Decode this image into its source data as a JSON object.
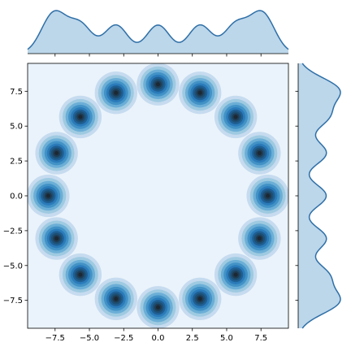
{
  "chart_data": {
    "type": "kde-jointplot",
    "title": "",
    "xlabel": "",
    "ylabel": "",
    "xlim": [
      -9.5,
      9.5
    ],
    "ylim": [
      -9.5,
      9.5
    ],
    "x_ticks": [
      -7.5,
      -5.0,
      -2.5,
      0.0,
      2.5,
      5.0,
      7.5
    ],
    "y_ticks": [
      -7.5,
      -5.0,
      -2.5,
      0.0,
      2.5,
      5.0,
      7.5
    ],
    "x_tick_labels": [
      "−7.5",
      "−5.0",
      "−2.5",
      "0.0",
      "2.5",
      "5.0",
      "7.5"
    ],
    "y_tick_labels": [
      "−7.5",
      "−5.0",
      "−2.5",
      "0.0",
      "2.5",
      "5.0",
      "7.5"
    ],
    "cluster_centers": [
      {
        "x": 8.0,
        "y": 0.0
      },
      {
        "x": 7.39,
        "y": 3.06
      },
      {
        "x": 5.66,
        "y": 5.66
      },
      {
        "x": 3.06,
        "y": 7.39
      },
      {
        "x": 0.0,
        "y": 8.0
      },
      {
        "x": -3.06,
        "y": 7.39
      },
      {
        "x": -5.66,
        "y": 5.66
      },
      {
        "x": -7.39,
        "y": 3.06
      },
      {
        "x": -8.0,
        "y": 0.0
      },
      {
        "x": -7.39,
        "y": -3.06
      },
      {
        "x": -5.66,
        "y": -5.66
      },
      {
        "x": -3.06,
        "y": -7.39
      },
      {
        "x": 0.0,
        "y": -8.0
      },
      {
        "x": 3.06,
        "y": -7.39
      },
      {
        "x": 5.66,
        "y": -5.66
      },
      {
        "x": 7.39,
        "y": -3.06
      }
    ],
    "grid": false,
    "colors": {
      "background_fill": "#eaf3fb",
      "palette": [
        "#eaf3fb",
        "#c6dbef",
        "#9ecae1",
        "#6baed6",
        "#4292c6",
        "#2b7bba",
        "#1f5f93",
        "#1d4f73",
        "#1f3b52",
        "#1c2833"
      ],
      "marginal_line": "#2e6fa7",
      "marginal_fill": "#bcd6ea"
    }
  }
}
